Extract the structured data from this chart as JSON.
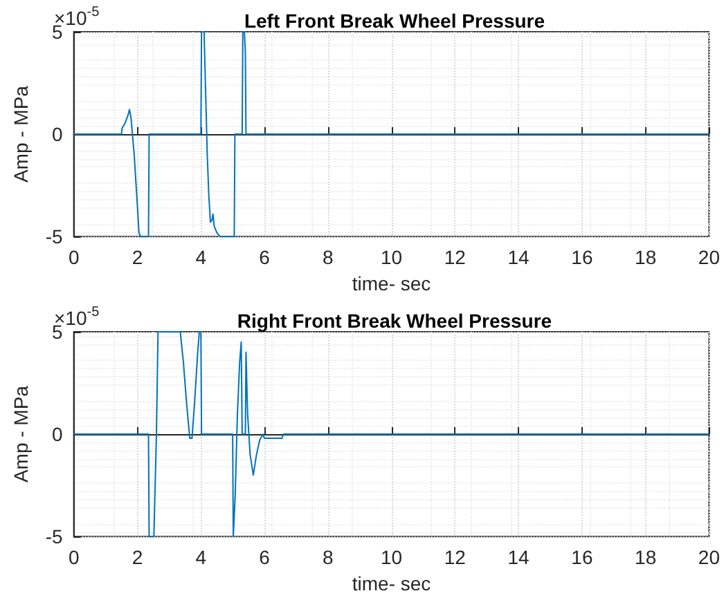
{
  "chart_data": [
    {
      "type": "line",
      "title": "Left Front Break Wheel Pressure",
      "xlabel": "time- sec",
      "ylabel": "Amp - MPa",
      "annotations": [
        "×10$^{-5}$"
      ],
      "series": [
        {
          "color": "#0072bd",
          "x": [
            0,
            1.5,
            1.52,
            1.6,
            1.7,
            1.75,
            1.8,
            1.9,
            2.0,
            2.05,
            2.1,
            2.35,
            2.37,
            4.0,
            4.02,
            4.1,
            4.15,
            4.2,
            4.25,
            4.3,
            4.35,
            4.38,
            4.42,
            4.5,
            4.6,
            5.05,
            5.07,
            5.3,
            5.32,
            5.37,
            5.4,
            5.42,
            20
          ],
          "values": [
            0,
            0,
            0.3,
            0.5,
            0.9,
            1.2,
            0.8,
            -1,
            -3.5,
            -4.8,
            -5,
            -5,
            0,
            0,
            5,
            5,
            2,
            -1,
            -3,
            -4.3,
            -4.2,
            -3.9,
            -4.5,
            -4.8,
            -5,
            -5,
            0,
            0,
            5,
            5,
            4,
            0,
            0
          ]
        }
      ],
      "xlim": [
        0,
        20
      ],
      "xticks": [
        0,
        2,
        4,
        6,
        8,
        10,
        12,
        14,
        16,
        18,
        20
      ],
      "ylim": [
        -5,
        5
      ],
      "yticks": [
        -5,
        0,
        5
      ],
      "grid": true,
      "marker": "none",
      "line_style": "solid"
    },
    {
      "type": "line",
      "title": "Right Front Break Wheel Pressure",
      "xlabel": "time- sec",
      "ylabel": "Amp - MPa",
      "annotations": [
        "×10$^{-5}$"
      ],
      "series": [
        {
          "color": "#0072bd",
          "x": [
            0,
            2.35,
            2.37,
            2.52,
            2.6,
            2.65,
            3.35,
            3.45,
            3.55,
            3.65,
            3.72,
            3.8,
            3.9,
            3.95,
            4.0,
            4.02,
            5.0,
            5.02,
            5.08,
            5.15,
            5.22,
            5.27,
            5.3,
            5.4,
            5.42,
            5.47,
            5.55,
            5.65,
            5.75,
            5.85,
            5.95,
            6.0,
            6.55,
            6.6,
            20
          ],
          "values": [
            0,
            0,
            -5,
            -5,
            0,
            5,
            5,
            3.5,
            1.5,
            -0.2,
            -0.2,
            1.5,
            4,
            5,
            5,
            0,
            0,
            -5,
            -3,
            1,
            3.5,
            4.5,
            0,
            0,
            4,
            1,
            -1,
            -2,
            -1,
            -0.3,
            0,
            -0.2,
            -0.2,
            0,
            0
          ]
        }
      ],
      "xlim": [
        0,
        20
      ],
      "xticks": [
        0,
        2,
        4,
        6,
        8,
        10,
        12,
        14,
        16,
        18,
        20
      ],
      "ylim": [
        -5,
        5
      ],
      "yticks": [
        -5,
        0,
        5
      ],
      "grid": true,
      "marker": "none",
      "line_style": "solid"
    }
  ]
}
